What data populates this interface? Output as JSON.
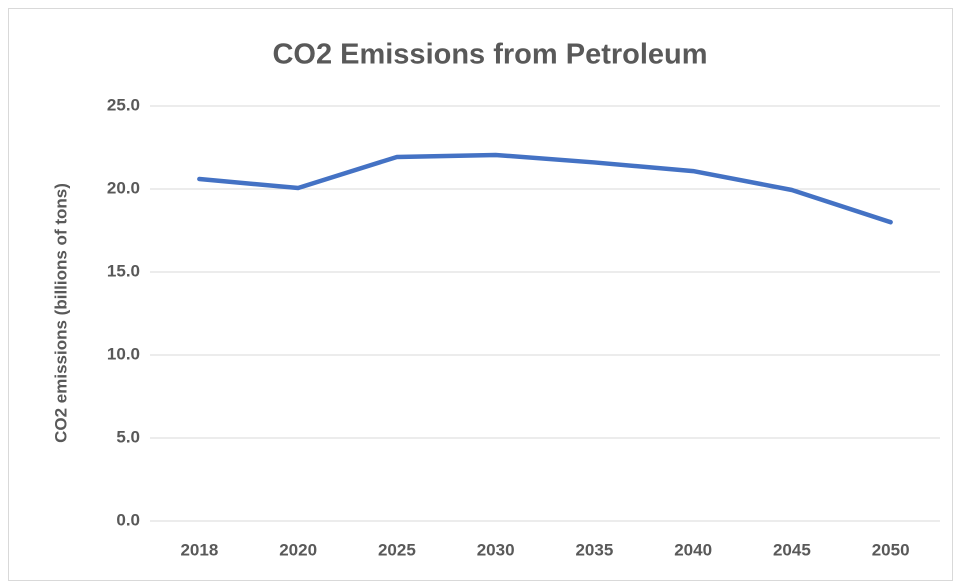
{
  "chart_data": {
    "type": "line",
    "title": "CO2 Emissions from Petroleum",
    "y_label": "CO2 emissions (billions of tons)",
    "categories": [
      "2018",
      "2020",
      "2025",
      "2030",
      "2035",
      "2040",
      "2045",
      "2050"
    ],
    "series": [
      {
        "name": "CO2 emissions",
        "color": "#4472c4",
        "values": [
          20.6,
          20.06,
          21.93,
          22.05,
          21.6,
          21.08,
          19.94,
          18.0
        ]
      }
    ],
    "ylim": [
      0,
      25
    ],
    "yticks": [
      {
        "value": 0,
        "label": "0.0"
      },
      {
        "value": 5,
        "label": "5.0"
      },
      {
        "value": 10,
        "label": "10.0"
      },
      {
        "value": 15,
        "label": "15.0"
      },
      {
        "value": 20,
        "label": "20.0"
      },
      {
        "value": 25,
        "label": "25.0"
      }
    ],
    "grid": true
  }
}
